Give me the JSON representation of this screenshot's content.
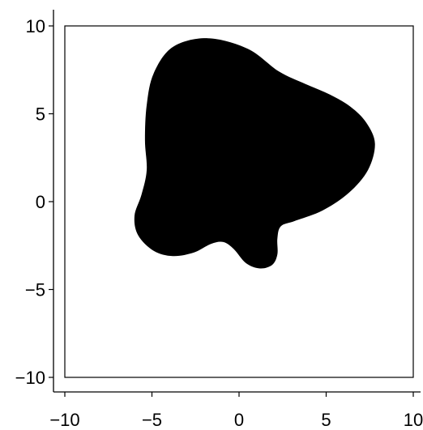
{
  "chart_data": {
    "type": "area",
    "title": "",
    "xlabel": "",
    "ylabel": "",
    "xlim": [
      -10,
      10
    ],
    "ylim": [
      -10,
      10
    ],
    "grid": false,
    "legend": "none",
    "x_ticks": [
      -10,
      -5,
      0,
      5,
      10
    ],
    "y_ticks": [
      -10,
      -5,
      0,
      5,
      10
    ],
    "x_tick_labels": [
      "−10",
      "−5",
      "0",
      "5",
      "10"
    ],
    "y_tick_labels": [
      "−10",
      "−5",
      "0",
      "5",
      "10"
    ],
    "fill_color": "#000000",
    "series": [
      {
        "shape": "closed-region",
        "points": [
          [
            -1.8,
            9.3
          ],
          [
            0.5,
            8.7
          ],
          [
            2.3,
            7.4
          ],
          [
            3.8,
            6.7
          ],
          [
            5.2,
            6.1
          ],
          [
            6.4,
            5.4
          ],
          [
            7.3,
            4.5
          ],
          [
            7.8,
            3.3
          ],
          [
            7.4,
            1.8
          ],
          [
            6.3,
            0.5
          ],
          [
            4.8,
            -0.5
          ],
          [
            3.2,
            -1.1
          ],
          [
            2.4,
            -1.4
          ],
          [
            2.2,
            -2.1
          ],
          [
            2.2,
            -3.0
          ],
          [
            1.9,
            -3.6
          ],
          [
            1.2,
            -3.8
          ],
          [
            0.4,
            -3.5
          ],
          [
            -0.3,
            -2.7
          ],
          [
            -0.9,
            -2.3
          ],
          [
            -1.6,
            -2.4
          ],
          [
            -2.6,
            -2.9
          ],
          [
            -3.8,
            -3.1
          ],
          [
            -4.9,
            -2.8
          ],
          [
            -5.8,
            -1.9
          ],
          [
            -6.0,
            -0.8
          ],
          [
            -5.6,
            0.4
          ],
          [
            -5.3,
            1.8
          ],
          [
            -5.4,
            3.5
          ],
          [
            -5.3,
            5.5
          ],
          [
            -4.9,
            7.3
          ],
          [
            -3.8,
            8.8
          ]
        ]
      }
    ]
  }
}
